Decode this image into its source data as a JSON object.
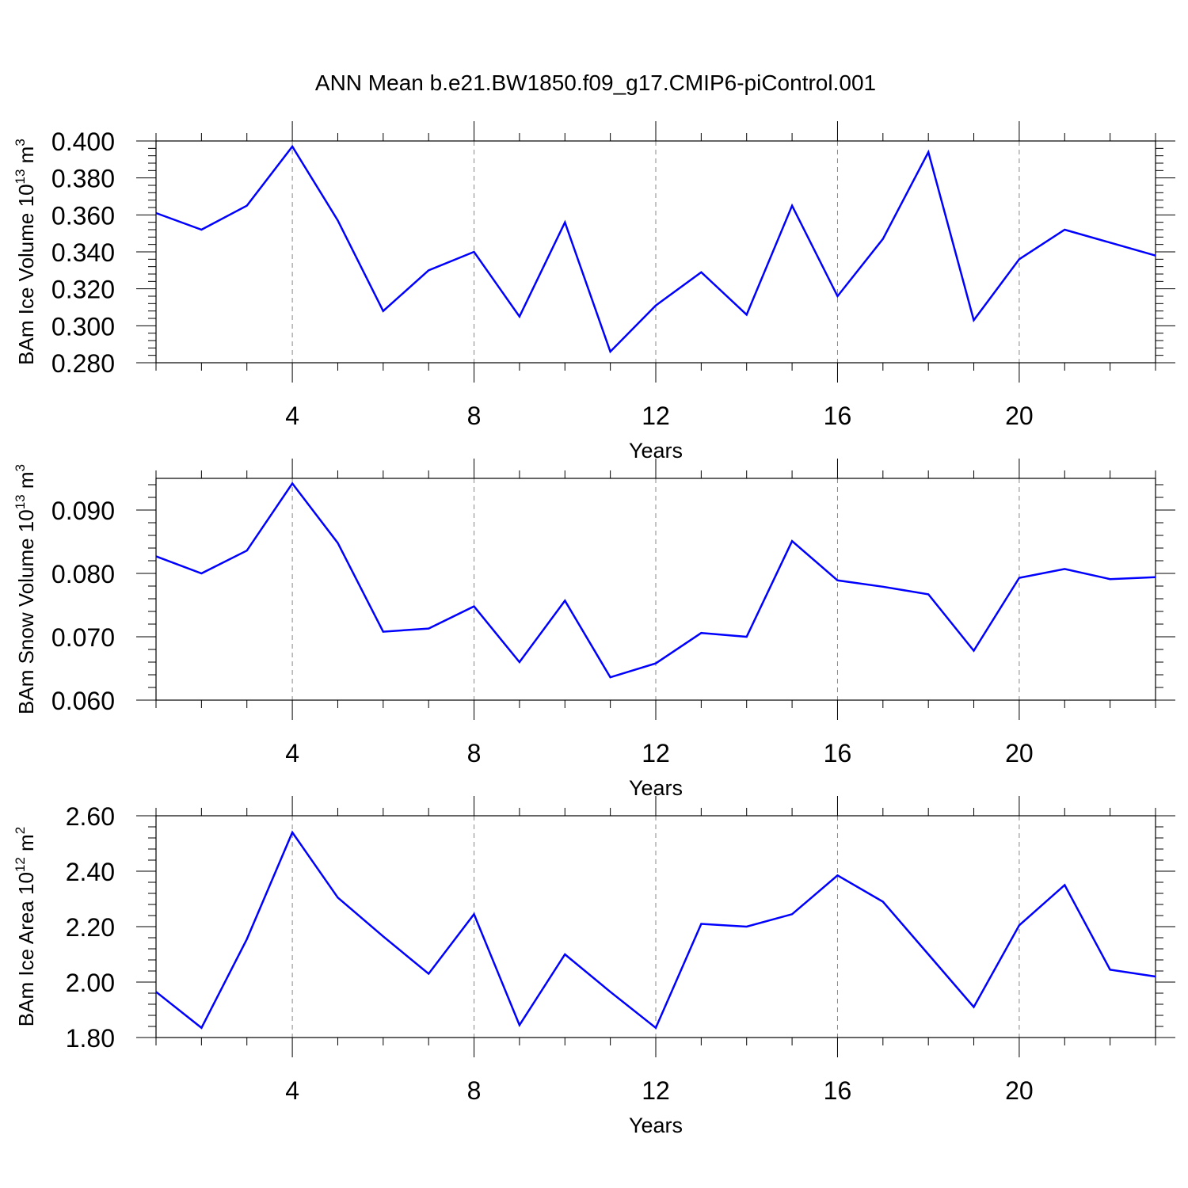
{
  "title": "ANN Mean b.e21.BW1850.f09_g17.CMIP6-piControl.001",
  "line_color": "#0000ff",
  "chart_data": [
    {
      "type": "line",
      "ylabel": "BAm Ice Volume 10",
      "ylabel_exp": "13",
      "ylabel_unit": " m",
      "ylabel_unit_exp": "3",
      "xlabel": "Years",
      "xlim": [
        1,
        23
      ],
      "ylim": [
        0.28,
        0.4
      ],
      "xticks": [
        4,
        8,
        12,
        16,
        20
      ],
      "xtick_labels": [
        "4",
        "8",
        "12",
        "16",
        "20"
      ],
      "yticks": [
        0.28,
        0.3,
        0.32,
        0.34,
        0.36,
        0.38,
        0.4
      ],
      "ytick_labels": [
        "0.280",
        "0.300",
        "0.320",
        "0.340",
        "0.360",
        "0.380",
        "0.400"
      ],
      "grid": "vertical dashed at major x ticks",
      "x": [
        1,
        2,
        3,
        4,
        5,
        6,
        7,
        8,
        9,
        10,
        11,
        12,
        13,
        14,
        15,
        16,
        17,
        18,
        19,
        20,
        21,
        22,
        23
      ],
      "series": [
        {
          "values": [
            0.361,
            0.352,
            0.365,
            0.397,
            0.357,
            0.308,
            0.33,
            0.34,
            0.305,
            0.356,
            0.286,
            0.311,
            0.329,
            0.306,
            0.365,
            0.316,
            0.347,
            0.394,
            0.303,
            0.336,
            0.352,
            0.345,
            0.338
          ]
        }
      ]
    },
    {
      "type": "line",
      "ylabel": "BAm Snow Volume 10",
      "ylabel_exp": "13",
      "ylabel_unit": " m",
      "ylabel_unit_exp": "3",
      "xlabel": "Years",
      "xlim": [
        1,
        23
      ],
      "ylim": [
        0.06,
        0.095
      ],
      "xticks": [
        4,
        8,
        12,
        16,
        20
      ],
      "xtick_labels": [
        "4",
        "8",
        "12",
        "16",
        "20"
      ],
      "yticks": [
        0.06,
        0.07,
        0.08,
        0.09
      ],
      "ytick_labels": [
        "0.060",
        "0.070",
        "0.080",
        "0.090"
      ],
      "grid": "vertical dashed at major x ticks",
      "x": [
        1,
        2,
        3,
        4,
        5,
        6,
        7,
        8,
        9,
        10,
        11,
        12,
        13,
        14,
        15,
        16,
        17,
        18,
        19,
        20,
        21,
        22,
        23
      ],
      "series": [
        {
          "values": [
            0.0827,
            0.08,
            0.0836,
            0.0942,
            0.0848,
            0.0708,
            0.0713,
            0.0748,
            0.066,
            0.0757,
            0.0636,
            0.0658,
            0.0706,
            0.07,
            0.0851,
            0.0789,
            0.0779,
            0.0767,
            0.0678,
            0.0793,
            0.0807,
            0.0791,
            0.0794
          ]
        }
      ]
    },
    {
      "type": "line",
      "ylabel": "BAm Ice Area 10",
      "ylabel_exp": "12",
      "ylabel_unit": " m",
      "ylabel_unit_exp": "2",
      "xlabel": "Years",
      "xlim": [
        1,
        23
      ],
      "ylim": [
        1.8,
        2.6
      ],
      "xticks": [
        4,
        8,
        12,
        16,
        20
      ],
      "xtick_labels": [
        "4",
        "8",
        "12",
        "16",
        "20"
      ],
      "yticks": [
        1.8,
        2.0,
        2.2,
        2.4,
        2.6
      ],
      "ytick_labels": [
        "1.80",
        "2.00",
        "2.20",
        "2.40",
        "2.60"
      ],
      "grid": "vertical dashed at major x ticks",
      "x": [
        1,
        2,
        3,
        4,
        5,
        6,
        7,
        8,
        9,
        10,
        11,
        12,
        13,
        14,
        15,
        16,
        17,
        18,
        19,
        20,
        21,
        22,
        23
      ],
      "series": [
        {
          "values": [
            1.965,
            1.835,
            2.155,
            2.54,
            2.305,
            2.165,
            2.03,
            2.245,
            1.845,
            2.1,
            1.965,
            1.835,
            2.21,
            2.2,
            2.245,
            2.385,
            2.29,
            2.1,
            1.91,
            2.205,
            2.35,
            2.045,
            2.02
          ]
        }
      ]
    }
  ]
}
